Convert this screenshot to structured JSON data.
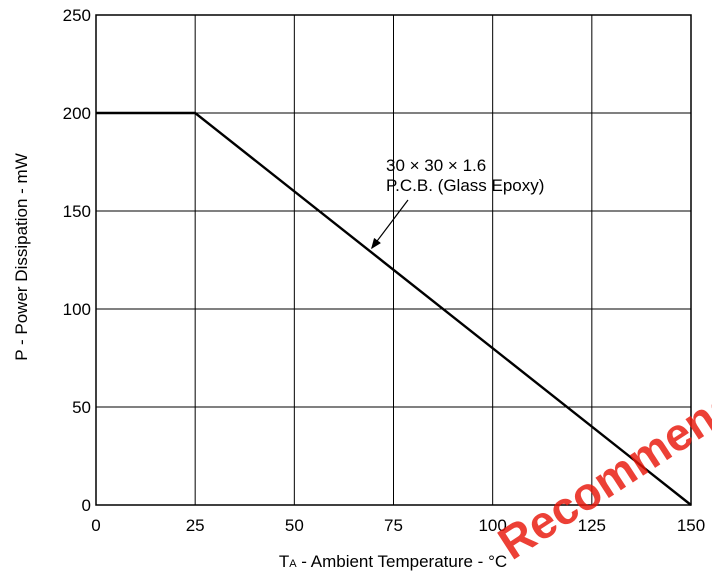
{
  "chart_data": {
    "type": "line",
    "xlabel": {
      "symbol": "T",
      "subscript": "A",
      "text": " -  Ambient Temperature  - °C"
    },
    "ylabel": "P -  Power Dissipation  - mW",
    "x_ticks": [
      0,
      25,
      50,
      75,
      100,
      125,
      150
    ],
    "y_ticks": [
      0,
      50,
      100,
      150,
      200,
      250
    ],
    "xlim": [
      0,
      150
    ],
    "ylim": [
      0,
      250
    ],
    "grid": true,
    "series": [
      {
        "x": [
          0,
          25,
          150
        ],
        "y": [
          200,
          200,
          0
        ]
      }
    ],
    "annotations": [
      {
        "lines": [
          "30 × 30 × 1.6",
          "P.C.B. (Glass Epoxy)"
        ],
        "points_to": {
          "x": 69,
          "y": 130
        }
      }
    ]
  },
  "watermark": {
    "text": "Recommend Design",
    "color": "#e8170a"
  }
}
